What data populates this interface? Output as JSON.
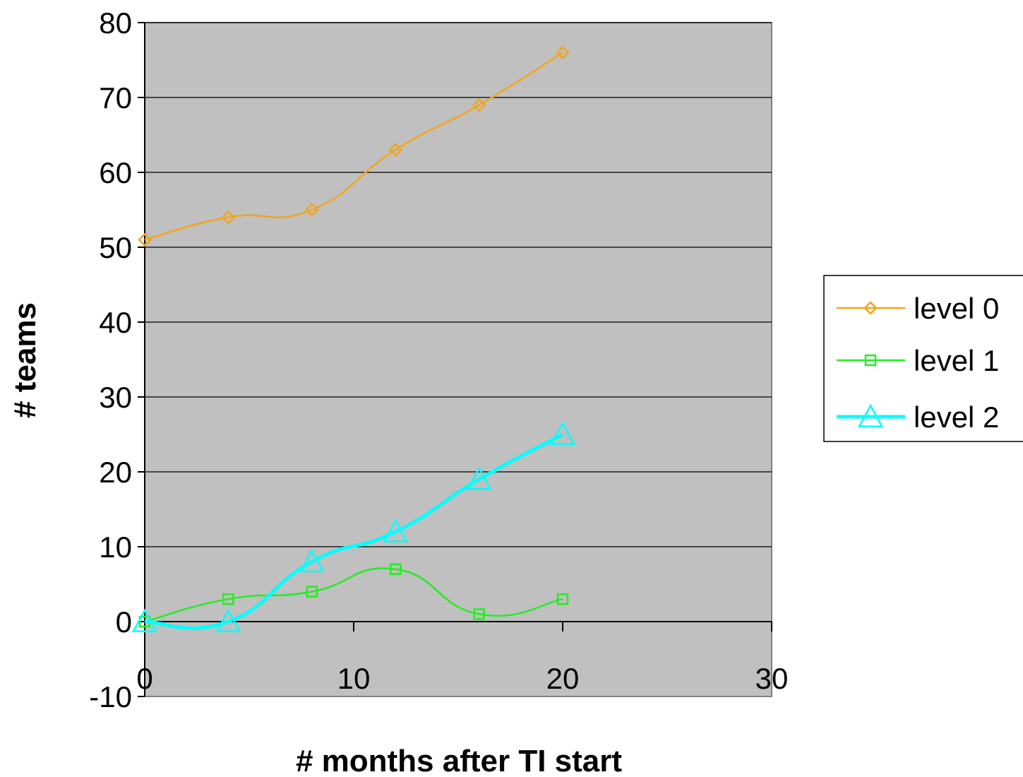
{
  "chart_data": {
    "type": "line",
    "title": "",
    "xlabel": "# months after TI start",
    "ylabel": "# teams",
    "xlim": [
      0,
      30
    ],
    "ylim": [
      -10,
      80
    ],
    "xticks": [
      "0",
      "10",
      "20",
      "30"
    ],
    "yticks": [
      "80",
      "70",
      "60",
      "50",
      "40",
      "30",
      "20",
      "10",
      "0",
      "-10"
    ],
    "grid": "horizontal",
    "plot_background": "#c0c0c0",
    "legend_position": "right",
    "series": [
      {
        "name": "level 0",
        "color": "#f2a51a",
        "marker": "diamond",
        "x": [
          0,
          4,
          8,
          12,
          16,
          20
        ],
        "values": [
          51,
          54,
          55,
          63,
          69,
          76
        ]
      },
      {
        "name": "level 1",
        "color": "#22ee22",
        "marker": "square",
        "x": [
          0,
          4,
          8,
          12,
          16,
          20
        ],
        "values": [
          0,
          3,
          4,
          7,
          1,
          3
        ]
      },
      {
        "name": "level 2",
        "color": "#00ffff",
        "marker": "triangle",
        "x": [
          0,
          4,
          8,
          12,
          16,
          20
        ],
        "values": [
          0,
          0,
          8,
          12,
          19,
          25
        ]
      }
    ]
  }
}
